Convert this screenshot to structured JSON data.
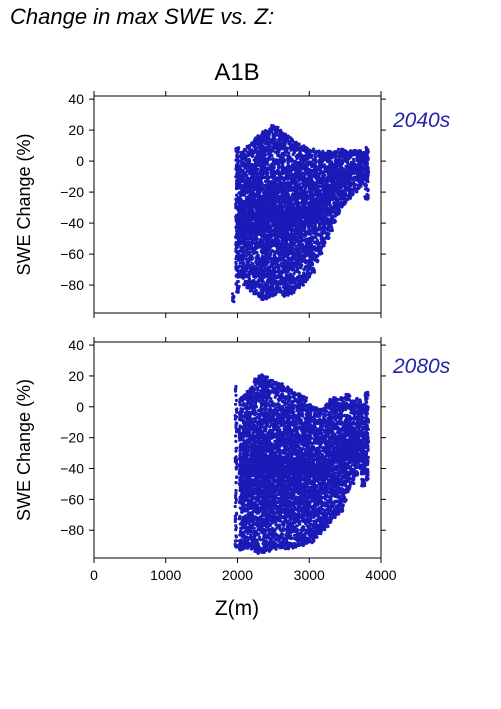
{
  "page_title": "Change in max SWE vs. Z:",
  "scenario": "A1B",
  "point_color": "#1a1ab8",
  "period_color": "#2424a8",
  "xlabel": "Z(m)",
  "chart_data": [
    {
      "type": "scatter",
      "panel_label": "2040s",
      "ylabel": "SWE Change (%)",
      "xlim": [
        0,
        4000
      ],
      "ylim": [
        -98,
        42
      ],
      "x_ticks": [
        0,
        1000,
        2000,
        3000,
        4000
      ],
      "y_ticks": [
        40,
        20,
        0,
        -20,
        -40,
        -60,
        -80
      ],
      "x_tick_labels": [
        "0",
        "1000",
        "2000",
        "3000",
        "4000"
      ],
      "y_tick_labels": [
        "40",
        "20",
        "0",
        "−20",
        "−40",
        "−60",
        "−80"
      ],
      "grid": false,
      "columns": [
        [
          1940,
          -88,
          -88
        ],
        [
          2000,
          -85,
          9
        ],
        [
          2050,
          -75,
          6
        ],
        [
          2100,
          -80,
          8
        ],
        [
          2150,
          -82,
          10
        ],
        [
          2200,
          -84,
          12
        ],
        [
          2250,
          -86,
          15
        ],
        [
          2300,
          -88,
          17
        ],
        [
          2350,
          -90,
          19
        ],
        [
          2400,
          -89,
          20
        ],
        [
          2450,
          -88,
          21
        ],
        [
          2500,
          -87,
          23
        ],
        [
          2550,
          -86,
          22
        ],
        [
          2600,
          -85,
          20
        ],
        [
          2650,
          -88,
          18
        ],
        [
          2700,
          -87,
          17
        ],
        [
          2750,
          -86,
          15
        ],
        [
          2800,
          -85,
          13
        ],
        [
          2850,
          -82,
          11
        ],
        [
          2900,
          -80,
          10
        ],
        [
          2950,
          -78,
          9
        ],
        [
          3000,
          -75,
          8
        ],
        [
          3050,
          -72,
          8
        ],
        [
          3100,
          -65,
          7
        ],
        [
          3150,
          -60,
          7
        ],
        [
          3200,
          -55,
          7
        ],
        [
          3250,
          -50,
          7
        ],
        [
          3300,
          -45,
          7
        ],
        [
          3350,
          -40,
          7
        ],
        [
          3400,
          -35,
          8
        ],
        [
          3450,
          -30,
          8
        ],
        [
          3500,
          -28,
          7
        ],
        [
          3550,
          -25,
          6
        ],
        [
          3600,
          -22,
          7
        ],
        [
          3650,
          -20,
          7
        ],
        [
          3700,
          -18,
          7
        ],
        [
          3750,
          -15,
          6
        ],
        [
          3800,
          -25,
          10
        ]
      ]
    },
    {
      "type": "scatter",
      "panel_label": "2080s",
      "ylabel": "SWE Change (%)",
      "xlim": [
        0,
        4000
      ],
      "ylim": [
        -98,
        42
      ],
      "x_ticks": [
        0,
        1000,
        2000,
        3000,
        4000
      ],
      "y_ticks": [
        40,
        20,
        0,
        -20,
        -40,
        -60,
        -80
      ],
      "x_tick_labels": [
        "0",
        "1000",
        "2000",
        "3000",
        "4000"
      ],
      "y_tick_labels": [
        "40",
        "20",
        "0",
        "−20",
        "−40",
        "−60",
        "−80"
      ],
      "grid": false,
      "columns": [
        [
          1980,
          -92,
          14
        ],
        [
          2050,
          -93,
          6
        ],
        [
          2100,
          -92,
          8
        ],
        [
          2150,
          -92,
          10
        ],
        [
          2200,
          -93,
          14
        ],
        [
          2250,
          -94,
          18
        ],
        [
          2300,
          -95,
          20
        ],
        [
          2350,
          -95,
          21
        ],
        [
          2400,
          -94,
          20
        ],
        [
          2450,
          -94,
          18
        ],
        [
          2500,
          -93,
          17
        ],
        [
          2550,
          -93,
          16
        ],
        [
          2600,
          -92,
          15
        ],
        [
          2650,
          -92,
          14
        ],
        [
          2700,
          -92,
          13
        ],
        [
          2750,
          -92,
          12
        ],
        [
          2800,
          -91,
          10
        ],
        [
          2850,
          -90,
          9
        ],
        [
          2900,
          -90,
          8
        ],
        [
          2950,
          -89,
          6
        ],
        [
          3000,
          -88,
          2
        ],
        [
          3050,
          -88,
          0
        ],
        [
          3100,
          -85,
          0
        ],
        [
          3150,
          -83,
          -1
        ],
        [
          3200,
          -80,
          -1
        ],
        [
          3250,
          -78,
          2
        ],
        [
          3300,
          -75,
          5
        ],
        [
          3350,
          -72,
          6
        ],
        [
          3400,
          -70,
          5
        ],
        [
          3450,
          -68,
          6
        ],
        [
          3500,
          -62,
          8
        ],
        [
          3550,
          -55,
          8
        ],
        [
          3600,
          -50,
          5
        ],
        [
          3650,
          -45,
          6
        ],
        [
          3700,
          -40,
          5
        ],
        [
          3750,
          -52,
          2
        ],
        [
          3800,
          -48,
          10
        ]
      ]
    }
  ]
}
